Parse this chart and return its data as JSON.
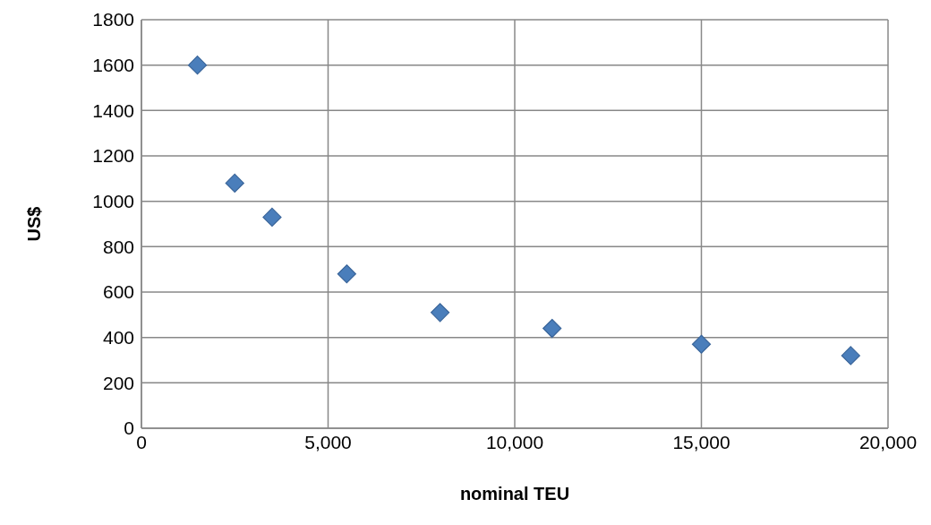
{
  "chart_data": {
    "type": "scatter",
    "xlabel": "nominal TEU",
    "ylabel": "US$",
    "x": [
      1500,
      2500,
      3500,
      5500,
      8000,
      11000,
      15000,
      19000
    ],
    "series": [
      {
        "color": "#4a7ebb",
        "values": [
          1600,
          1080,
          930,
          680,
          510,
          440,
          370,
          320
        ]
      }
    ],
    "xlim": [
      0,
      20000
    ],
    "xticks": [
      0,
      {
        "value": 5000,
        "label": "5,000"
      },
      {
        "value": 10000,
        "label": "10,000"
      },
      {
        "value": 15000,
        "label": "15,000"
      },
      {
        "value": 20000,
        "label": "20,000"
      }
    ],
    "ylim": [
      0,
      1800
    ],
    "yticks": [
      0,
      200,
      400,
      600,
      800,
      1000,
      1200,
      1400,
      1600,
      1800
    ],
    "grid": true,
    "marker": "diamond",
    "legend": false
  }
}
